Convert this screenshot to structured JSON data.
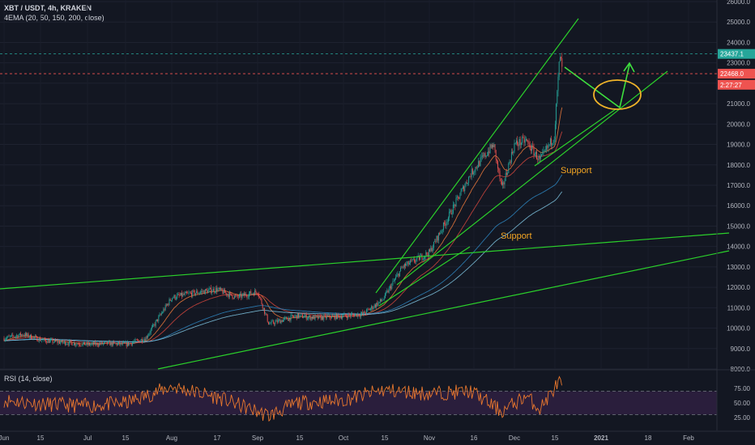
{
  "header": {
    "symbol_line": "XBT / USDT, 4h, KRAKEN",
    "indicator_line": "4EMA (20, 50, 150, 200, close)"
  },
  "rsi": {
    "label": "RSI (14, close)",
    "levels": [
      "75.00",
      "50.00",
      "25.00"
    ]
  },
  "colors": {
    "background": "#131722",
    "up": "#26a69a",
    "down": "#ef5350",
    "trendline": "#2bd12b",
    "arrow": "#3ee03e",
    "ellipse": "#f0b429",
    "annotation": "#f5a623",
    "rsi_line": "#e8772e",
    "rsi_band": "#2a1e3c"
  },
  "chart_data": {
    "type": "candlestick",
    "ylim": [
      8000,
      26000
    ],
    "price_axis_unit": "USDT",
    "y_ticks": [
      "8000.0",
      "9000.0",
      "10000.0",
      "11000.0",
      "12000.0",
      "13000.0",
      "14000.0",
      "15000.0",
      "16000.0",
      "17000.0",
      "18000.0",
      "19000.0",
      "20000.0",
      "21000.0",
      "22000.0",
      "23000.0",
      "24000.0",
      "25000.0",
      "26000.0"
    ],
    "x_ticks": [
      "Jun",
      "15",
      "Jul",
      "15",
      "Aug",
      "17",
      "Sep",
      "15",
      "Oct",
      "15",
      "Nov",
      "16",
      "Dec",
      "15",
      "2021",
      "18",
      "Feb"
    ],
    "price_labels": [
      {
        "text": "23437.1",
        "value": 23437.1,
        "color": "#26a69a"
      },
      {
        "text": "22468.0",
        "value": 22468.0,
        "color": "#ef5350"
      },
      {
        "text": "2:27:27",
        "value": 21925,
        "color": "#ef5350"
      }
    ],
    "annotations": [
      {
        "text": "Support",
        "x": "Dec 10",
        "y": 17600
      },
      {
        "text": "Support",
        "x": "Nov 10",
        "y": 14500
      }
    ],
    "price_path": [
      [
        "Jun 1",
        9500
      ],
      [
        "Jun 8",
        9700
      ],
      [
        "Jun 15",
        9400
      ],
      [
        "Jun 22",
        9300
      ],
      [
        "Jul 1",
        9200
      ],
      [
        "Jul 8",
        9250
      ],
      [
        "Jul 15",
        9200
      ],
      [
        "Jul 22",
        9500
      ],
      [
        "Aug 1",
        11500
      ],
      [
        "Aug 8",
        11700
      ],
      [
        "Aug 17",
        11900
      ],
      [
        "Aug 24",
        11500
      ],
      [
        "Sep 1",
        11800
      ],
      [
        "Sep 5",
        10200
      ],
      [
        "Sep 15",
        10600
      ],
      [
        "Sep 22",
        10500
      ],
      [
        "Oct 1",
        10600
      ],
      [
        "Oct 8",
        10700
      ],
      [
        "Oct 15",
        11400
      ],
      [
        "Oct 22",
        13000
      ],
      [
        "Nov 1",
        13700
      ],
      [
        "Nov 8",
        15500
      ],
      [
        "Nov 16",
        17600
      ],
      [
        "Nov 24",
        19000
      ],
      [
        "Nov 27",
        16800
      ],
      [
        "Dec 1",
        19000
      ],
      [
        "Dec 5",
        19200
      ],
      [
        "Dec 10",
        18200
      ],
      [
        "Dec 15",
        19400
      ],
      [
        "Dec 17",
        23400
      ],
      [
        "Dec 18",
        22468
      ]
    ],
    "rsi_path": [
      [
        "Jun 1",
        55
      ],
      [
        "Jun 15",
        48
      ],
      [
        "Jul 1",
        45
      ],
      [
        "Jul 15",
        50
      ],
      [
        "Aug 1",
        78
      ],
      [
        "Aug 17",
        60
      ],
      [
        "Sep 5",
        28
      ],
      [
        "Sep 15",
        50
      ],
      [
        "Oct 1",
        55
      ],
      [
        "Oct 15",
        72
      ],
      [
        "Nov 1",
        66
      ],
      [
        "Nov 16",
        70
      ],
      [
        "Nov 27",
        35
      ],
      [
        "Dec 5",
        62
      ],
      [
        "Dec 10",
        40
      ],
      [
        "Dec 17",
        88
      ],
      [
        "Dec 18",
        70
      ]
    ],
    "rsi_ylim": [
      0,
      100
    ],
    "legend": "none"
  }
}
